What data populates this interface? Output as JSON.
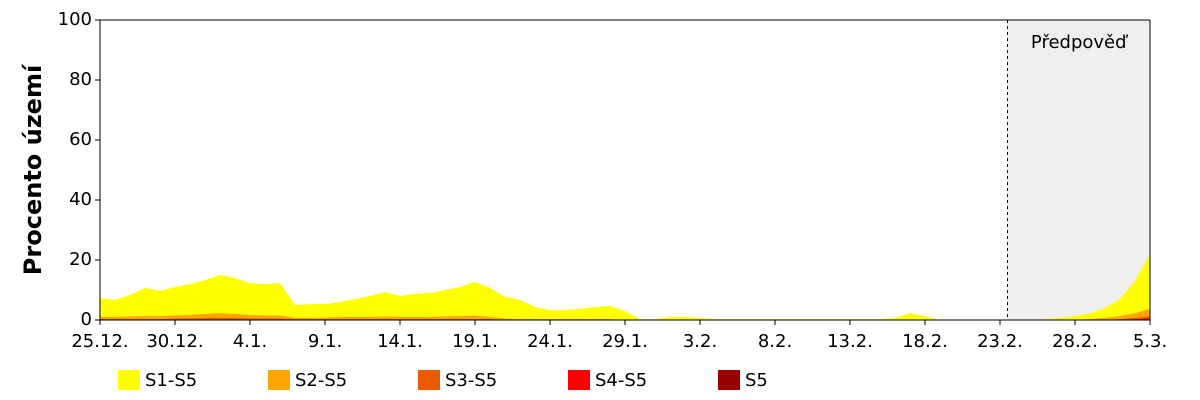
{
  "chart_data": {
    "type": "area",
    "y_label": "Procento území",
    "categories": [
      "25.12.",
      null,
      null,
      null,
      null,
      "30.12.",
      null,
      null,
      null,
      null,
      "4.1.",
      null,
      null,
      null,
      null,
      "9.1.",
      null,
      null,
      null,
      null,
      "14.1.",
      null,
      null,
      null,
      null,
      "19.1.",
      null,
      null,
      null,
      null,
      "24.1.",
      null,
      null,
      null,
      null,
      "29.1.",
      null,
      null,
      null,
      null,
      "3.2.",
      null,
      null,
      null,
      null,
      "8.2.",
      null,
      null,
      null,
      null,
      "13.2.",
      null,
      null,
      null,
      null,
      "18.2.",
      null,
      null,
      null,
      null,
      "23.2.",
      null,
      null,
      null,
      null,
      "28.2.",
      null,
      null,
      null,
      null,
      "5.3."
    ],
    "ylim": [
      0,
      100
    ],
    "yticks": [
      0,
      20,
      40,
      60,
      80,
      100
    ],
    "forecast_label": "Předpověď",
    "forecast_start": 60.5,
    "series": [
      {
        "name": "S1-S5",
        "color": "#ffff00",
        "values": [
          7.3,
          6.7,
          8.3,
          10.7,
          9.7,
          11,
          12,
          13.3,
          15,
          14,
          12.3,
          12,
          12.3,
          5,
          5.3,
          5.3,
          6,
          7,
          8,
          9.3,
          8,
          8.7,
          9,
          10,
          11,
          12.7,
          10.7,
          7.7,
          6.7,
          4.3,
          3.3,
          3.3,
          3.7,
          4.3,
          4.7,
          3,
          0.3,
          0.3,
          1,
          1,
          0.7,
          0.3,
          0.3,
          0.3,
          0.3,
          0.3,
          0.3,
          0.3,
          0.3,
          0.3,
          0.3,
          0.3,
          0.3,
          0.7,
          2.3,
          1.3,
          0,
          0,
          0,
          0,
          0,
          0,
          0,
          0.3,
          0.7,
          1.3,
          2.3,
          4,
          7,
          13,
          22
        ]
      },
      {
        "name": "S2-S5",
        "color": "#ffa500",
        "values": [
          1,
          1,
          1.2,
          1.3,
          1.3,
          1.5,
          1.7,
          2,
          2.3,
          2,
          1.7,
          1.5,
          1.5,
          0.7,
          0.7,
          0.8,
          1,
          1,
          1,
          1.2,
          1,
          1,
          1,
          1.2,
          1.3,
          1.5,
          1,
          0.5,
          0.3,
          0.3,
          0.3,
          0.3,
          0.3,
          0.3,
          0.3,
          0,
          0,
          0,
          0,
          0,
          0,
          0,
          0,
          0,
          0,
          0,
          0,
          0,
          0,
          0,
          0,
          0,
          0,
          0,
          0,
          0,
          0,
          0,
          0,
          0,
          0,
          0,
          0,
          0,
          0,
          0,
          0.3,
          0.7,
          1.3,
          2.3,
          3.7
        ]
      },
      {
        "name": "S3-S5",
        "color": "#ec5a00",
        "values": [
          0.3,
          0.3,
          0.3,
          0.3,
          0.3,
          0.5,
          0.5,
          0.7,
          0.7,
          0.7,
          0.5,
          0.5,
          0.5,
          0.3,
          0.3,
          0.3,
          0.3,
          0.3,
          0.3,
          0.3,
          0.3,
          0.3,
          0.3,
          0.3,
          0.3,
          0.3,
          0.3,
          0,
          0,
          0,
          0,
          0,
          0,
          0,
          0,
          0,
          0,
          0,
          0,
          0,
          0,
          0,
          0,
          0,
          0,
          0,
          0,
          0,
          0,
          0,
          0,
          0,
          0,
          0,
          0,
          0,
          0,
          0,
          0,
          0,
          0,
          0,
          0,
          0,
          0,
          0,
          0,
          0,
          0.3,
          0.7,
          1.3
        ]
      },
      {
        "name": "S4-S5",
        "color": "#ff0000",
        "values": [
          0,
          0,
          0,
          0,
          0,
          0,
          0,
          0,
          0,
          0,
          0,
          0,
          0,
          0,
          0,
          0,
          0,
          0,
          0,
          0,
          0,
          0,
          0,
          0,
          0,
          0,
          0,
          0,
          0,
          0,
          0,
          0,
          0,
          0,
          0,
          0,
          0,
          0,
          0,
          0,
          0,
          0,
          0,
          0,
          0,
          0,
          0,
          0,
          0,
          0,
          0,
          0,
          0,
          0,
          0,
          0,
          0,
          0,
          0,
          0,
          0,
          0,
          0,
          0,
          0,
          0,
          0,
          0,
          0,
          0.3,
          0.5
        ]
      },
      {
        "name": "S5",
        "color": "#990000",
        "values": [
          0,
          0,
          0,
          0,
          0,
          0,
          0,
          0,
          0,
          0,
          0,
          0,
          0,
          0,
          0,
          0,
          0,
          0,
          0,
          0,
          0,
          0,
          0,
          0,
          0,
          0,
          0,
          0,
          0,
          0,
          0,
          0,
          0,
          0,
          0,
          0,
          0,
          0,
          0,
          0,
          0,
          0,
          0,
          0,
          0,
          0,
          0,
          0,
          0,
          0,
          0,
          0,
          0,
          0,
          0,
          0,
          0,
          0,
          0,
          0,
          0,
          0,
          0,
          0,
          0,
          0,
          0,
          0,
          0,
          0,
          0
        ]
      }
    ]
  }
}
